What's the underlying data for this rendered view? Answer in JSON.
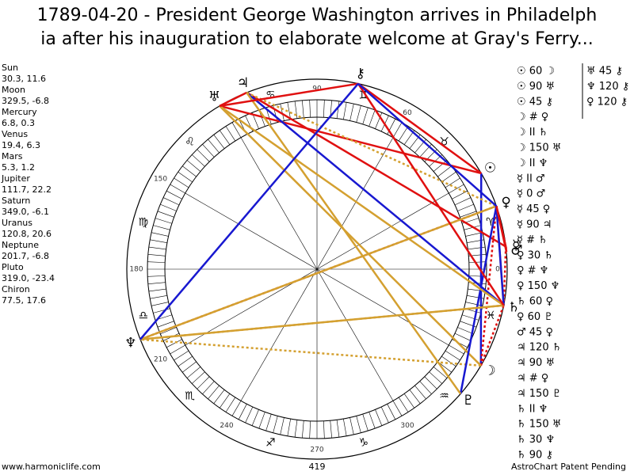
{
  "header": {
    "title_lines": [
      "1789-04-20 - President George Washington arrives in Philadelph",
      "ia after his inauguration to elaborate welcome at Gray's Ferry..."
    ]
  },
  "planets": [
    {
      "name": "Sun",
      "glyph": "☉",
      "coords": "30.3, 11.6"
    },
    {
      "name": "Moon",
      "glyph": "☽",
      "coords": "329.5, -6.8"
    },
    {
      "name": "Mercury",
      "glyph": "☿",
      "coords": "6.8, 0.3"
    },
    {
      "name": "Venus",
      "glyph": "♀",
      "coords": "19.4, 6.3"
    },
    {
      "name": "Mars",
      "glyph": "♂",
      "coords": "5.3, 1.2"
    },
    {
      "name": "Jupiter",
      "glyph": "♃",
      "coords": "111.7, 22.2"
    },
    {
      "name": "Saturn",
      "glyph": "♄",
      "coords": "349.0, -6.1"
    },
    {
      "name": "Uranus",
      "glyph": "♅",
      "coords": "120.8, 20.6"
    },
    {
      "name": "Neptune",
      "glyph": "♆",
      "coords": "201.7, -6.8"
    },
    {
      "name": "Pluto",
      "glyph": "♇",
      "coords": "319.0, -23.4"
    },
    {
      "name": "Chiron",
      "glyph": "⚷",
      "coords": "77.5, 17.6"
    }
  ],
  "signs": [
    "♈",
    "♉",
    "♊",
    "♋",
    "♌",
    "♍",
    "♎",
    "♏",
    "♐",
    "♑",
    "♒",
    "♓"
  ],
  "degree_labels": [
    0,
    60,
    90,
    150,
    180,
    210,
    240,
    270,
    300
  ],
  "aspects": [
    {
      "text": "☉ 60 ☽",
      "color": "#1818d0",
      "style": "solid"
    },
    {
      "text": "☉ 90 ♅",
      "color": "#e01010",
      "style": "solid"
    },
    {
      "text": "☉ 45 ⚷",
      "color": "#e01010",
      "style": "solid"
    },
    {
      "text": "☽ # ♀",
      "color": "#e01010",
      "style": "dotted"
    },
    {
      "text": "☽ II ♄",
      "color": "#e01010",
      "style": "dotted"
    },
    {
      "text": "☽ 150 ♅",
      "color": "#d4a030",
      "style": "solid"
    },
    {
      "text": "☽ II ♆",
      "color": "#d4a030",
      "style": "dotted"
    },
    {
      "text": "☿ II ♂",
      "color": "#e01010",
      "style": "dotted"
    },
    {
      "text": "☿ 0 ♂",
      "color": "#e01010",
      "style": "solid"
    },
    {
      "text": "☿ 45 ♀",
      "color": "#e01010",
      "style": "solid"
    },
    {
      "text": "☿ 90 ♃",
      "color": "#e01010",
      "style": "solid"
    },
    {
      "text": "☿ # ♄",
      "color": "#e01010",
      "style": "dotted"
    },
    {
      "text": "♀ 30 ♄",
      "color": "#d4a030",
      "style": "solid"
    },
    {
      "text": "♀ # ♆",
      "color": "#e01010",
      "style": "dotted"
    },
    {
      "text": "♀ 150 ♆",
      "color": "#d4a030",
      "style": "solid"
    },
    {
      "text": "♄ 60 ♀",
      "color": "#1818d0",
      "style": "solid"
    },
    {
      "text": "♀ 60 ♇",
      "color": "#1818d0",
      "style": "solid"
    },
    {
      "text": "♂ 45 ♀",
      "color": "#e01010",
      "style": "solid"
    },
    {
      "text": "♃ 120 ♄",
      "color": "#1818d0",
      "style": "solid"
    },
    {
      "text": "♃ 90 ♅",
      "color": "#e01010",
      "style": "solid"
    },
    {
      "text": "♃ # ♀",
      "color": "#d4a030",
      "style": "dotted"
    },
    {
      "text": "♃ 150 ♇",
      "color": "#d4a030",
      "style": "solid"
    },
    {
      "text": "♄ II ♆",
      "color": "#d4a030",
      "style": "dotted"
    },
    {
      "text": "♄ 150 ♅",
      "color": "#d4a030",
      "style": "solid"
    },
    {
      "text": "♄ 30 ♆",
      "color": "#d4a030",
      "style": "solid"
    },
    {
      "text": "♄ 90 ⚷",
      "color": "#e01010",
      "style": "solid"
    },
    {
      "text": "♅ 45 ⚷",
      "color": "#e01010",
      "style": "solid"
    },
    {
      "text": "♆ 120 ⚷",
      "color": "#1818d0",
      "style": "solid"
    },
    {
      "text": "♀ 120 ⚷",
      "color": "#1818d0",
      "style": "solid"
    }
  ],
  "footer": {
    "left": "www.harmoniclife.com",
    "center": 419,
    "right": "AstroChart Patent Pending"
  }
}
